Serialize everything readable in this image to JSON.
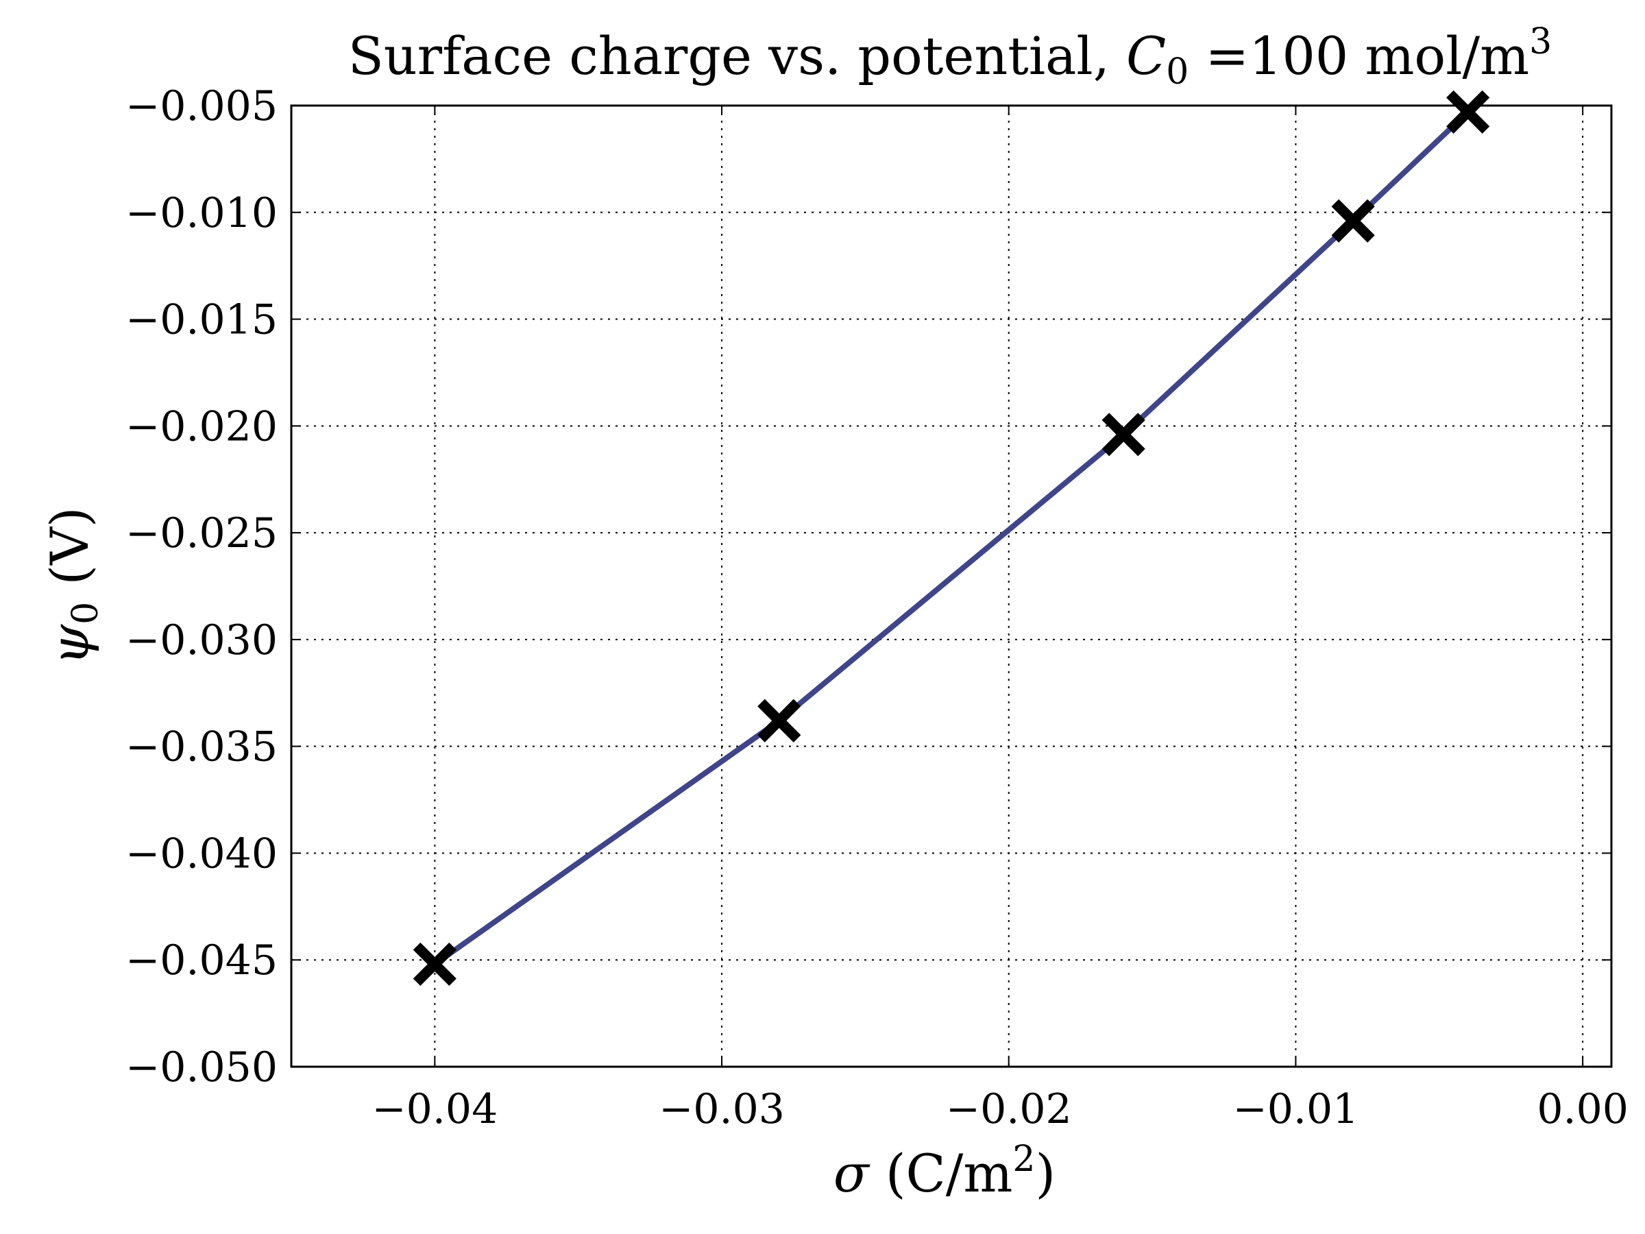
{
  "chart_data": {
    "type": "line",
    "title": {
      "prefix": "Surface charge vs. potential, ",
      "symbol": "C",
      "subscript": "0",
      "middle": " =100 mol/m",
      "superscript": "3"
    },
    "xlabel": {
      "symbol": "σ",
      "prefix": " (C/m",
      "superscript": "2",
      "suffix": ")"
    },
    "ylabel": {
      "symbol": "ψ",
      "subscript": "0",
      "suffix": " (V)"
    },
    "xlim": [
      -0.045,
      0.001
    ],
    "ylim": [
      -0.05,
      -0.005
    ],
    "x_ticks": [
      -0.04,
      -0.03,
      -0.02,
      -0.01,
      0.0
    ],
    "x_tick_labels": [
      "−0.04",
      "−0.03",
      "−0.02",
      "−0.01",
      "0.00"
    ],
    "y_ticks": [
      -0.05,
      -0.045,
      -0.04,
      -0.035,
      -0.03,
      -0.025,
      -0.02,
      -0.015,
      -0.01,
      -0.005
    ],
    "y_tick_labels": [
      "−0.050",
      "−0.045",
      "−0.040",
      "−0.035",
      "−0.030",
      "−0.025",
      "−0.020",
      "−0.015",
      "−0.010",
      "−0.005"
    ],
    "grid": true,
    "grid_style": "dotted",
    "series": [
      {
        "style": "line",
        "color": "#3f4589",
        "x": [
          -0.04,
          -0.028,
          -0.016,
          -0.008,
          -0.004
        ],
        "y": [
          -0.0452,
          -0.0338,
          -0.0204,
          -0.0104,
          -0.0053
        ]
      },
      {
        "style": "markers",
        "marker": "X",
        "color": "#000000",
        "x": [
          -0.04,
          -0.028,
          -0.016,
          -0.008,
          -0.004
        ],
        "y": [
          -0.0452,
          -0.0338,
          -0.0204,
          -0.0104,
          -0.0053
        ]
      }
    ]
  }
}
